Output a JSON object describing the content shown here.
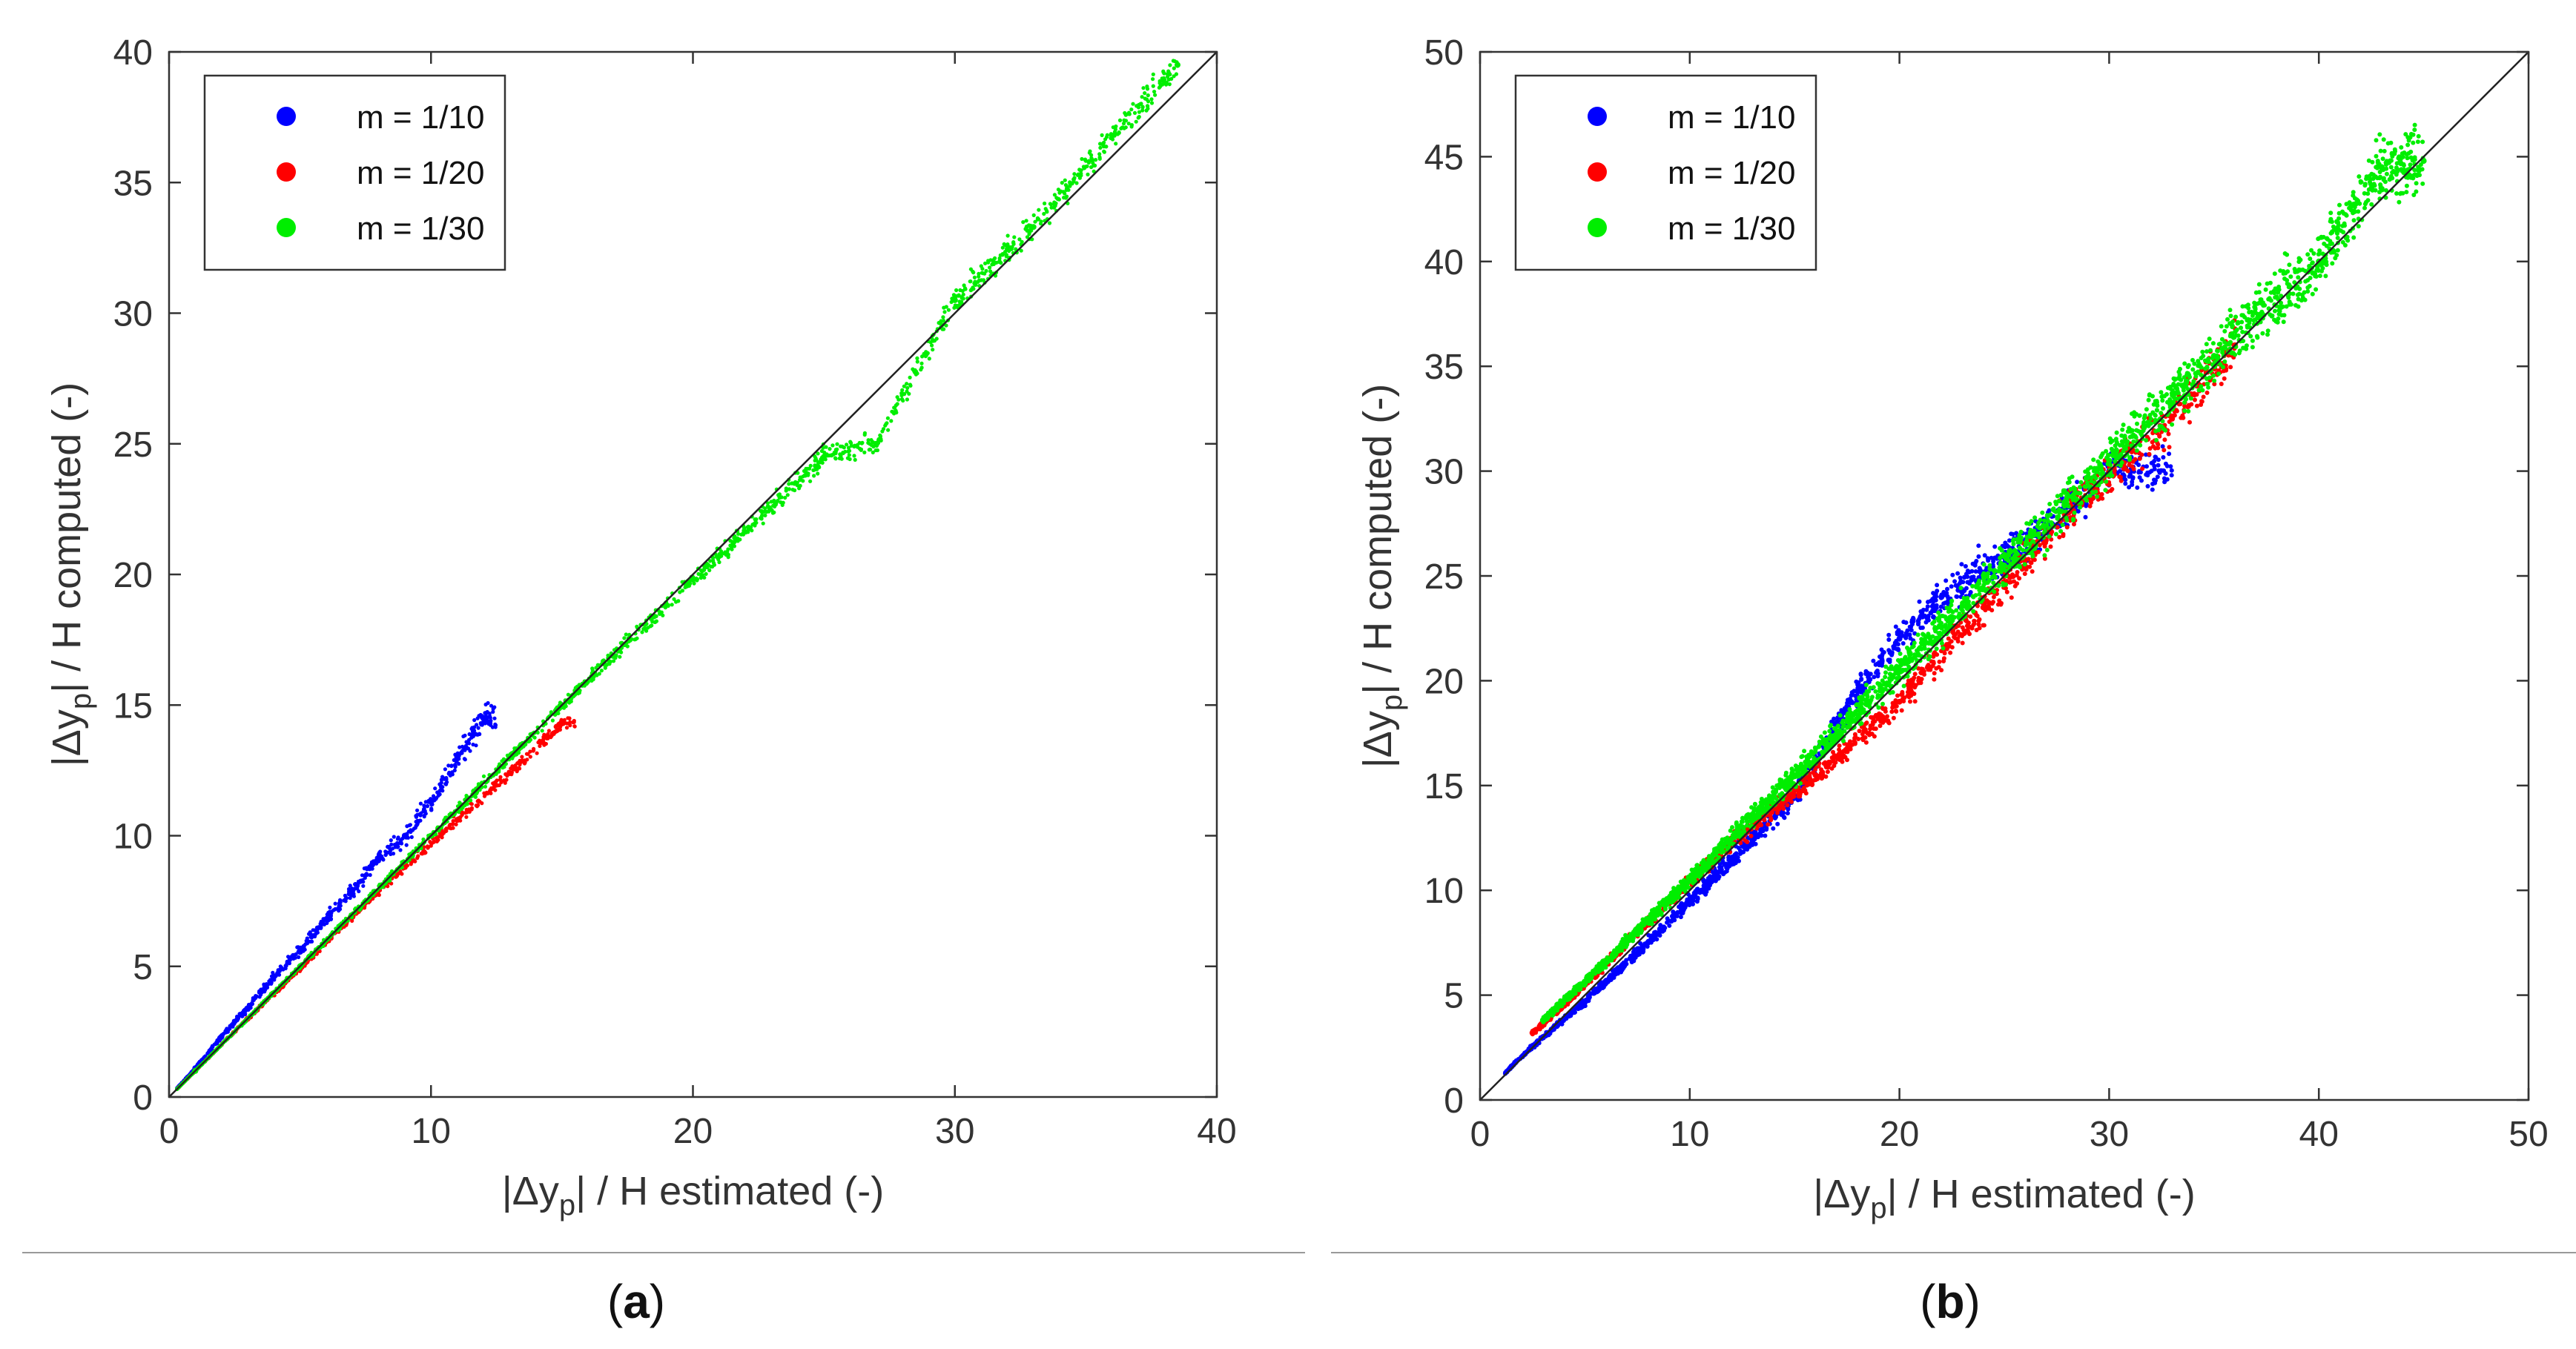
{
  "chart_data": [
    {
      "type": "scatter",
      "panel_label": "a",
      "xlabel": "|Δy",
      "xlabel_sub": "p",
      "xlabel_rest": "| / H estimated (-)",
      "ylabel": "|Δy",
      "ylabel_sub": "p",
      "ylabel_rest": "| / H computed (-)",
      "xlim": [
        0,
        40
      ],
      "ylim": [
        0,
        40
      ],
      "xticks": [
        0,
        10,
        20,
        30,
        40
      ],
      "yticks": [
        0,
        5,
        10,
        15,
        20,
        25,
        30,
        35,
        40
      ],
      "reference_line": [
        [
          0,
          0
        ],
        [
          40,
          40
        ]
      ],
      "legend_position": "top-left",
      "series": [
        {
          "name": "m = 1/10",
          "color": "#0000ff",
          "x_range": [
            0.3,
            12.5
          ],
          "trend": "spread around y = x, mostly x in 2–11, y up to ~14.5",
          "points": [
            [
              1,
              1.1
            ],
            [
              2,
              2.3
            ],
            [
              3,
              3.4
            ],
            [
              4,
              4.6
            ],
            [
              5,
              5.6
            ],
            [
              6,
              6.8
            ],
            [
              7,
              7.9
            ],
            [
              8,
              9.1
            ],
            [
              9,
              10.0
            ],
            [
              10,
              11.3
            ],
            [
              11,
              13.0
            ],
            [
              12,
              14.5
            ]
          ]
        },
        {
          "name": "m = 1/20",
          "color": "#ff0000",
          "x_range": [
            0.3,
            15.5
          ],
          "trend": "close to y = x, up to ~15",
          "points": [
            [
              1,
              1.0
            ],
            [
              3,
              3.0
            ],
            [
              5,
              4.9
            ],
            [
              7,
              6.9
            ],
            [
              9,
              8.8
            ],
            [
              11,
              10.6
            ],
            [
              13,
              12.4
            ],
            [
              15,
              14.3
            ]
          ]
        },
        {
          "name": "m = 1/30",
          "color": "#00ee00",
          "x_range": [
            0.3,
            38.5
          ],
          "trend": "along y = x to ~38.5, scatter below line for x 18–28",
          "points": [
            [
              1,
              1.0
            ],
            [
              5,
              5.0
            ],
            [
              10,
              10.0
            ],
            [
              15,
              15.0
            ],
            [
              20,
              19.8
            ],
            [
              25,
              24.5
            ],
            [
              27,
              25.0
            ],
            [
              30,
              30.5
            ],
            [
              33,
              33.3
            ],
            [
              36,
              36.8
            ],
            [
              38.5,
              39.5
            ]
          ]
        }
      ]
    },
    {
      "type": "scatter",
      "panel_label": "b",
      "xlabel": "|Δy",
      "xlabel_sub": "p",
      "xlabel_rest": "| / H estimated (-)",
      "ylabel": "|Δy",
      "ylabel_sub": "p",
      "ylabel_rest": "| / H computed (-)",
      "xlim": [
        0,
        50
      ],
      "ylim": [
        0,
        50
      ],
      "xticks": [
        0,
        10,
        20,
        30,
        40,
        50
      ],
      "yticks": [
        0,
        5,
        10,
        15,
        20,
        25,
        30,
        35,
        40,
        45,
        50
      ],
      "reference_line": [
        [
          0,
          0
        ],
        [
          50,
          50
        ]
      ],
      "legend_position": "top-left",
      "series": [
        {
          "name": "m = 1/10",
          "color": "#0000ff",
          "x_range": [
            1.2,
            33
          ],
          "trend": "band around y = x, denser below line for x 3–15, above for x 15–22",
          "points": [
            [
              1.5,
              1.6
            ],
            [
              3,
              3.0
            ],
            [
              5,
              4.7
            ],
            [
              8,
              7.5
            ],
            [
              12,
              11.5
            ],
            [
              15,
              14.5
            ],
            [
              18,
              19.5
            ],
            [
              20,
              22.0
            ],
            [
              22,
              24.0
            ],
            [
              26,
              26.5
            ],
            [
              30,
              30.0
            ]
          ]
        },
        {
          "name": "m = 1/20",
          "color": "#ff0000",
          "x_range": [
            2.5,
            36
          ],
          "trend": "band around y = x, slightly below line for x 15–25",
          "points": [
            [
              2.5,
              3.2
            ],
            [
              4,
              4.5
            ],
            [
              8,
              8.5
            ],
            [
              12,
              12.3
            ],
            [
              16,
              15.5
            ],
            [
              20,
              19.0
            ],
            [
              24,
              23.5
            ],
            [
              28,
              28.0
            ],
            [
              33,
              32.5
            ],
            [
              36,
              36.0
            ]
          ]
        },
        {
          "name": "m = 1/30",
          "color": "#00ee00",
          "x_range": [
            3,
            45
          ],
          "trend": "band around y = x up to ~45",
          "points": [
            [
              3,
              3.8
            ],
            [
              6,
              6.6
            ],
            [
              10,
              10.5
            ],
            [
              15,
              15.5
            ],
            [
              20,
              20.5
            ],
            [
              25,
              25.5
            ],
            [
              30,
              30.5
            ],
            [
              35,
              35.5
            ],
            [
              40,
              40.0
            ],
            [
              43,
              44.5
            ],
            [
              45,
              44.8
            ]
          ]
        }
      ]
    }
  ]
}
